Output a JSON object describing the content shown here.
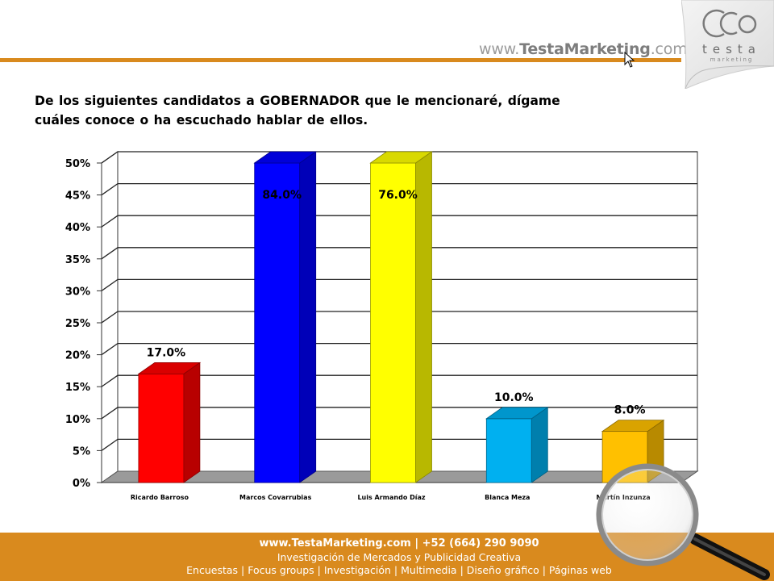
{
  "header": {
    "url_prefix": "www.",
    "url_brand": "TestaMarketing",
    "url_suffix": ".com",
    "logo_name": "testa",
    "logo_sub": "marketing",
    "accent_color": "#d98a1e"
  },
  "question": "De los siguientes candidatos a GOBERNADOR que le mencionaré, dígame cuáles conoce o ha escuchado hablar de ellos.",
  "chart_data": {
    "type": "bar",
    "categories": [
      "Ricardo Barroso",
      "Marcos Covarrubias",
      "Luis Armando Díaz",
      "Blanca Meza",
      "Martín Inzunza"
    ],
    "values": [
      17.0,
      84.0,
      76.0,
      10.0,
      8.0
    ],
    "data_labels": [
      "17.0%",
      "84.0%",
      "76.0%",
      "10.0%",
      "8.0%"
    ],
    "colors": [
      "#ff0000",
      "#0000ff",
      "#ffff00",
      "#00b0f0",
      "#ffc000"
    ],
    "ylim": [
      0,
      50
    ],
    "yticks": [
      "0%",
      "5%",
      "10%",
      "15%",
      "20%",
      "25%",
      "30%",
      "35%",
      "40%",
      "45%",
      "50%"
    ],
    "grid": true,
    "title": "",
    "xlabel": "",
    "ylabel": ""
  },
  "footer": {
    "line1": "www.TestaMarketing.com | +52 (664) 290 9090",
    "line2": "Investigación de Mercados y Publicidad Creativa",
    "line3": "Encuestas | Focus groups | Investigación | Multimedia | Diseño gráfico | Páginas web"
  }
}
